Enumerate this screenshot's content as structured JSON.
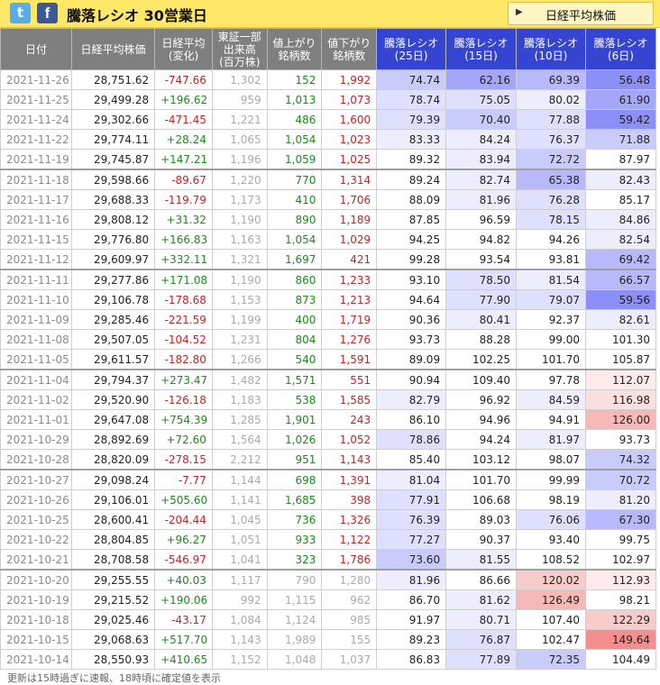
{
  "header": {
    "title": "騰落レシオ 30営業日",
    "nav_button": "日経平均株価",
    "twitter_icon": "t",
    "facebook_icon": "f"
  },
  "table": {
    "columns": [
      "日付",
      "日経平均株価",
      "日経平均\n(変化)",
      "東証一部\n出来高\n(百万株)",
      "値上がり\n銘柄数",
      "値下がり\n銘柄数",
      "騰落レシオ\n(25日)",
      "騰落レシオ\n(15日)",
      "騰落レシオ\n(10日)",
      "騰落レシオ\n(6日)"
    ],
    "rows": [
      [
        "2021-11-26",
        "28,751.62",
        "-747.66",
        "1,302",
        "152",
        "1,992",
        "74.74",
        "62.16",
        "69.39",
        "56.48"
      ],
      [
        "2021-11-25",
        "29,499.28",
        "+196.62",
        "959",
        "1,013",
        "1,073",
        "78.74",
        "75.05",
        "80.02",
        "61.90"
      ],
      [
        "2021-11-24",
        "29,302.66",
        "-471.45",
        "1,221",
        "486",
        "1,600",
        "79.39",
        "70.40",
        "77.88",
        "59.42"
      ],
      [
        "2021-11-22",
        "29,774.11",
        "+28.24",
        "1,065",
        "1,054",
        "1,023",
        "83.33",
        "84.24",
        "76.37",
        "71.88"
      ],
      [
        "2021-11-19",
        "29,745.87",
        "+147.21",
        "1,196",
        "1,059",
        "1,025",
        "89.32",
        "83.94",
        "72.72",
        "87.97"
      ],
      [
        "2021-11-18",
        "29,598.66",
        "-89.67",
        "1,220",
        "770",
        "1,314",
        "89.24",
        "82.74",
        "65.38",
        "82.43"
      ],
      [
        "2021-11-17",
        "29,688.33",
        "-119.79",
        "1,173",
        "410",
        "1,706",
        "88.09",
        "81.96",
        "76.28",
        "85.17"
      ],
      [
        "2021-11-16",
        "29,808.12",
        "+31.32",
        "1,190",
        "890",
        "1,189",
        "87.85",
        "96.59",
        "78.15",
        "84.86"
      ],
      [
        "2021-11-15",
        "29,776.80",
        "+166.83",
        "1,163",
        "1,054",
        "1,029",
        "94.25",
        "94.82",
        "94.26",
        "82.54"
      ],
      [
        "2021-11-12",
        "29,609.97",
        "+332.11",
        "1,321",
        "1,697",
        "421",
        "99.28",
        "93.54",
        "93.81",
        "69.42"
      ],
      [
        "2021-11-11",
        "29,277.86",
        "+171.08",
        "1,190",
        "860",
        "1,233",
        "93.10",
        "78.50",
        "81.54",
        "66.57"
      ],
      [
        "2021-11-10",
        "29,106.78",
        "-178.68",
        "1,153",
        "873",
        "1,213",
        "94.64",
        "77.90",
        "79.07",
        "59.56"
      ],
      [
        "2021-11-09",
        "29,285.46",
        "-221.59",
        "1,199",
        "400",
        "1,719",
        "90.36",
        "80.41",
        "92.37",
        "82.61"
      ],
      [
        "2021-11-08",
        "29,507.05",
        "-104.52",
        "1,231",
        "804",
        "1,276",
        "93.73",
        "88.28",
        "99.00",
        "101.30"
      ],
      [
        "2021-11-05",
        "29,611.57",
        "-182.80",
        "1,266",
        "540",
        "1,591",
        "89.09",
        "102.25",
        "101.70",
        "105.87"
      ],
      [
        "2021-11-04",
        "29,794.37",
        "+273.47",
        "1,482",
        "1,571",
        "551",
        "90.94",
        "109.40",
        "97.78",
        "112.07"
      ],
      [
        "2021-11-02",
        "29,520.90",
        "-126.18",
        "1,183",
        "538",
        "1,585",
        "82.79",
        "96.92",
        "84.59",
        "116.98"
      ],
      [
        "2021-11-01",
        "29,647.08",
        "+754.39",
        "1,285",
        "1,901",
        "243",
        "86.10",
        "94.96",
        "94.91",
        "126.00"
      ],
      [
        "2021-10-29",
        "28,892.69",
        "+72.60",
        "1,564",
        "1,026",
        "1,052",
        "78.86",
        "94.24",
        "81.97",
        "93.73"
      ],
      [
        "2021-10-28",
        "28,820.09",
        "-278.15",
        "2,212",
        "951",
        "1,143",
        "85.40",
        "103.12",
        "98.07",
        "74.32"
      ],
      [
        "2021-10-27",
        "29,098.24",
        "-7.77",
        "1,144",
        "698",
        "1,391",
        "81.04",
        "101.70",
        "99.99",
        "70.72"
      ],
      [
        "2021-10-26",
        "29,106.01",
        "+505.60",
        "1,141",
        "1,685",
        "398",
        "77.91",
        "106.68",
        "98.19",
        "81.20"
      ],
      [
        "2021-10-25",
        "28,600.41",
        "-204.44",
        "1,045",
        "736",
        "1,326",
        "76.39",
        "89.03",
        "76.06",
        "67.30"
      ],
      [
        "2021-10-22",
        "28,804.85",
        "+96.27",
        "1,051",
        "933",
        "1,122",
        "77.27",
        "90.37",
        "93.40",
        "99.75"
      ],
      [
        "2021-10-21",
        "28,708.58",
        "-546.97",
        "1,041",
        "323",
        "1,786",
        "73.60",
        "81.55",
        "108.52",
        "102.97"
      ],
      [
        "2021-10-20",
        "29,255.55",
        "+40.03",
        "1,117",
        "790",
        "1,280",
        "81.96",
        "86.66",
        "120.02",
        "112.93"
      ],
      [
        "2021-10-19",
        "29,215.52",
        "+190.06",
        "992",
        "1,115",
        "962",
        "86.70",
        "81.62",
        "126.49",
        "98.21"
      ],
      [
        "2021-10-18",
        "29,025.46",
        "-43.17",
        "1,084",
        "1,124",
        "985",
        "91.97",
        "80.71",
        "107.40",
        "122.29"
      ],
      [
        "2021-10-15",
        "29,068.63",
        "+517.70",
        "1,143",
        "1,989",
        "155",
        "89.23",
        "76.87",
        "102.47",
        "149.64"
      ],
      [
        "2021-10-14",
        "28,550.93",
        "+410.65",
        "1,152",
        "1,048",
        "1,037",
        "86.83",
        "77.89",
        "72.35",
        "104.49"
      ]
    ],
    "group_separators_before": [
      5,
      10,
      15,
      20,
      25
    ],
    "dimmed_breadth_rows": [
      25,
      26,
      27,
      28,
      29
    ]
  },
  "footer": {
    "note": "更新は15時過ぎに速報、18時頃に確定値を表示"
  },
  "colors": {
    "header_bg": "#ffe768",
    "column_header_bg": "#7f7f7f",
    "ratio_header_bg": "#3645d1",
    "up_color": "#1d8a1d",
    "down_color": "#cc1f1f"
  }
}
